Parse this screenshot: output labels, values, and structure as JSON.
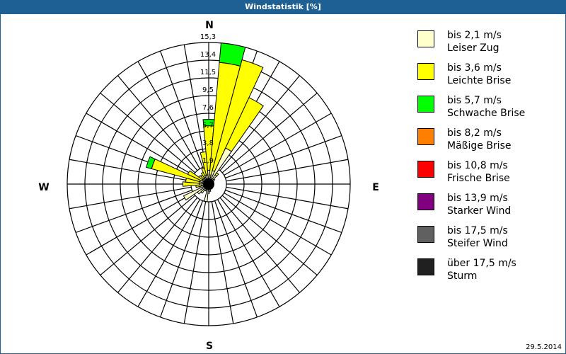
{
  "window": {
    "title": "Windstatistik [%]",
    "date": "29.5.2014"
  },
  "chart_data": {
    "type": "polar-stacked-bar",
    "title": "Windstatistik [%]",
    "directions": [
      "N",
      "E",
      "S",
      "W"
    ],
    "rings": [
      "1,9",
      "3,8",
      "5,7",
      "7,6",
      "9,5",
      "11,5",
      "13,4",
      "15,3"
    ],
    "rmax": 15.3,
    "sector_width_deg": 10,
    "categories": [
      {
        "label": "bis 2,1 m/s",
        "name": "Leiser Zug",
        "color": "#ffffcc"
      },
      {
        "label": "bis 3,6 m/s",
        "name": "Leichte Brise",
        "color": "#ffff00"
      },
      {
        "label": "bis 5,7 m/s",
        "name": "Schwache Brise",
        "color": "#00ff00"
      },
      {
        "label": "bis 8,2 m/s",
        "name": "Mäßige Brise",
        "color": "#ff8000"
      },
      {
        "label": "bis 10,8 m/s",
        "name": "Frische Brise",
        "color": "#ff0000"
      },
      {
        "label": "bis 13,9 m/s",
        "name": "Starker Wind",
        "color": "#800080"
      },
      {
        "label": "bis 17,5 m/s",
        "name": "Steifer Wind",
        "color": "#606060"
      },
      {
        "label": "über 17,5 m/s",
        "name": "Sturm",
        "color": "#202020"
      }
    ],
    "sectors": [
      {
        "deg": 0,
        "values": [
          1.5,
          4.8,
          0.7
        ]
      },
      {
        "deg": 10,
        "values": [
          1.0,
          12.2,
          2.1
        ]
      },
      {
        "deg": 20,
        "values": [
          1.5,
          12.4,
          0
        ]
      },
      {
        "deg": 30,
        "values": [
          4.3,
          6.0,
          0
        ]
      },
      {
        "deg": 40,
        "values": [
          1.2,
          0.3,
          0
        ]
      },
      {
        "deg": 50,
        "values": [
          0.8,
          0,
          0
        ]
      },
      {
        "deg": 60,
        "values": [
          0.6,
          0,
          0
        ]
      },
      {
        "deg": 70,
        "values": [
          0.5,
          0,
          0
        ]
      },
      {
        "deg": 80,
        "values": [
          0.5,
          0,
          0
        ]
      },
      {
        "deg": 90,
        "values": [
          0.5,
          0,
          0
        ]
      },
      {
        "deg": 100,
        "values": [
          0.5,
          0,
          0
        ]
      },
      {
        "deg": 110,
        "values": [
          0.5,
          0,
          0
        ]
      },
      {
        "deg": 120,
        "values": [
          0.5,
          0,
          0
        ]
      },
      {
        "deg": 130,
        "values": [
          0.5,
          0,
          0
        ]
      },
      {
        "deg": 140,
        "values": [
          0.6,
          0,
          0
        ]
      },
      {
        "deg": 150,
        "values": [
          0.6,
          0,
          0
        ]
      },
      {
        "deg": 160,
        "values": [
          0.6,
          0,
          0
        ]
      },
      {
        "deg": 170,
        "values": [
          0.8,
          0,
          0
        ]
      },
      {
        "deg": 180,
        "values": [
          1.0,
          0,
          0
        ]
      },
      {
        "deg": 190,
        "values": [
          1.9,
          0,
          0
        ]
      },
      {
        "deg": 200,
        "values": [
          0.8,
          0,
          0
        ]
      },
      {
        "deg": 210,
        "values": [
          0.8,
          0,
          0
        ]
      },
      {
        "deg": 220,
        "values": [
          1.2,
          0,
          0
        ]
      },
      {
        "deg": 230,
        "values": [
          1.5,
          0,
          0
        ]
      },
      {
        "deg": 240,
        "values": [
          3.0,
          0,
          0
        ]
      },
      {
        "deg": 250,
        "values": [
          1.0,
          0,
          0
        ]
      },
      {
        "deg": 260,
        "values": [
          0.8,
          0.6,
          0
        ]
      },
      {
        "deg": 270,
        "values": [
          1.0,
          1.8,
          0
        ]
      },
      {
        "deg": 280,
        "values": [
          1.0,
          1.5,
          0
        ]
      },
      {
        "deg": 290,
        "values": [
          1.0,
          5.4,
          0.6
        ]
      },
      {
        "deg": 300,
        "values": [
          0.8,
          1.7,
          0
        ]
      },
      {
        "deg": 310,
        "values": [
          0.8,
          0.5,
          0
        ]
      },
      {
        "deg": 320,
        "values": [
          0.8,
          0.4,
          0
        ]
      },
      {
        "deg": 330,
        "values": [
          0.8,
          0.6,
          0
        ]
      },
      {
        "deg": 340,
        "values": [
          1.0,
          0.8,
          0
        ]
      },
      {
        "deg": 350,
        "values": [
          1.0,
          2.5,
          0
        ]
      }
    ]
  }
}
